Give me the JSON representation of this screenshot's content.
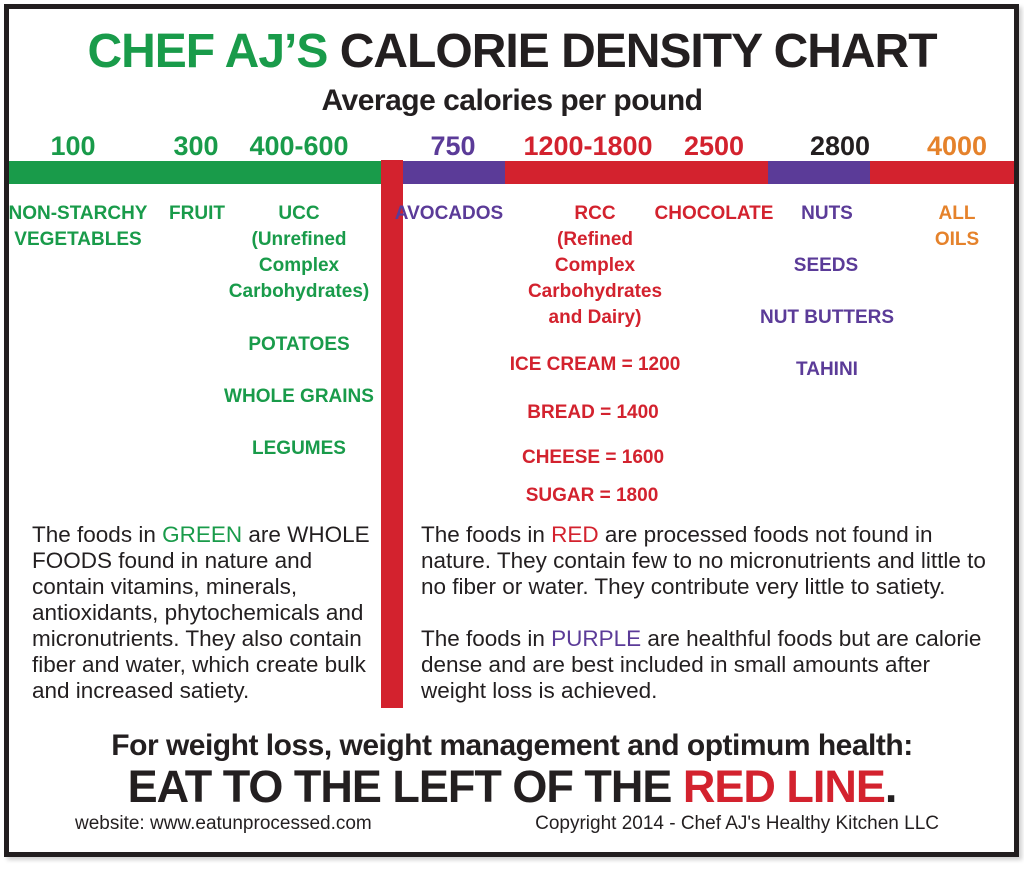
{
  "colors": {
    "green": "#199b4a",
    "red": "#d3222e",
    "purple": "#5b3b98",
    "orange": "#e5822b",
    "ink": "#231f20"
  },
  "header": {
    "brand": "CHEF AJ’S",
    "title_rest": " CALORIE DENSITY CHART",
    "subtitle": "Average calories per pound"
  },
  "scale_ticks": [
    {
      "label": "100",
      "color": "green"
    },
    {
      "label": "300",
      "color": "green"
    },
    {
      "label": "400-600",
      "color": "green"
    },
    {
      "label": "750",
      "color": "purple"
    },
    {
      "label": "1200-1800",
      "color": "red"
    },
    {
      "label": "2500",
      "color": "red"
    },
    {
      "label": "2800",
      "color": "black"
    },
    {
      "label": "4000",
      "color": "orange"
    }
  ],
  "foods": {
    "green": {
      "veg": "NON-STARCHY\nVEGETABLES",
      "fruit": "FRUIT",
      "ucc": "UCC\n(Unrefined\nComplex\nCarbohydrates)",
      "potatoes": "POTATOES",
      "whole_grains": "WHOLE GRAINS",
      "legumes": "LEGUMES"
    },
    "purple": {
      "avocados": "AVOCADOS",
      "nuts": "NUTS",
      "seeds": "SEEDS",
      "nut_butters": "NUT BUTTERS",
      "tahini": "TAHINI"
    },
    "red": {
      "rcc": "RCC\n(Refined\nComplex\nCarbohydrates\nand Dairy)",
      "ice_cream": "ICE CREAM = 1200",
      "bread": "BREAD = 1400",
      "cheese": "CHEESE = 1600",
      "sugar": "SUGAR = 1800",
      "chocolate": "CHOCOLATE"
    },
    "orange": {
      "all_oils": "ALL OILS"
    }
  },
  "paragraphs": {
    "green_pre": "The foods in ",
    "green_word": "GREEN",
    "green_post": " are WHOLE FOODS found in nature and contain vitamins, minerals, antioxidants, phytochemicals and micronutrients. They also contain fiber and water, which create bulk and increased satiety.",
    "red_pre": "The foods in ",
    "red_word": "RED",
    "red_post": " are processed foods not found in nature. They contain few to no micronutrients and little to no fiber or water. They contribute very little to satiety.",
    "purple_pre": "The foods in ",
    "purple_word": "PURPLE",
    "purple_post": " are healthful foods but are calorie dense and are best included in small amounts after weight loss is achieved."
  },
  "cta": {
    "line1": "For weight loss, weight management and optimum health:",
    "line2_black": "EAT TO THE LEFT OF THE ",
    "line2_red": "RED LINE",
    "line2_period": "."
  },
  "footer": {
    "website": "website: www.eatunprocessed.com",
    "copyright": "Copyright 2014 - Chef AJ's Healthy Kitchen LLC"
  },
  "chart_data": {
    "type": "table",
    "title": "CHEF AJ'S CALORIE DENSITY CHART",
    "subtitle": "Average calories per pound",
    "axis": {
      "unit": "average calories per pound",
      "tick_labels": [
        "100",
        "300",
        "400-600",
        "750",
        "1200-1800",
        "2500",
        "2800",
        "4000"
      ],
      "range": [
        100,
        4000
      ]
    },
    "zones": [
      {
        "color": "green",
        "range_calories": "100-600",
        "meaning": "whole foods found in nature"
      },
      {
        "color": "purple",
        "range_calories": "750",
        "meaning": "healthful but calorie dense"
      },
      {
        "color": "red",
        "range_calories": "1200-2500",
        "meaning": "processed foods not found in nature"
      },
      {
        "color": "purple",
        "range_calories": "2800",
        "meaning": "healthful but calorie dense"
      },
      {
        "color": "red",
        "range_calories": "4000",
        "meaning": "processed / oils"
      }
    ],
    "items": [
      {
        "food": "Non-starchy vegetables",
        "calories_per_pound": 100,
        "zone": "green"
      },
      {
        "food": "Fruit",
        "calories_per_pound": 300,
        "zone": "green"
      },
      {
        "food": "UCC (Unrefined Complex Carbohydrates): potatoes, whole grains, legumes",
        "calories_per_pound": "400-600",
        "zone": "green"
      },
      {
        "food": "Avocados",
        "calories_per_pound": 750,
        "zone": "purple"
      },
      {
        "food": "RCC (Refined Complex Carbohydrates and Dairy)",
        "calories_per_pound": "1200-1800",
        "zone": "red"
      },
      {
        "food": "Ice cream",
        "calories_per_pound": 1200,
        "zone": "red"
      },
      {
        "food": "Bread",
        "calories_per_pound": 1400,
        "zone": "red"
      },
      {
        "food": "Cheese",
        "calories_per_pound": 1600,
        "zone": "red"
      },
      {
        "food": "Sugar",
        "calories_per_pound": 1800,
        "zone": "red"
      },
      {
        "food": "Chocolate",
        "calories_per_pound": 2500,
        "zone": "red"
      },
      {
        "food": "Nuts, seeds, nut butters, tahini",
        "calories_per_pound": 2800,
        "zone": "purple"
      },
      {
        "food": "All oils",
        "calories_per_pound": 4000,
        "zone": "red"
      }
    ],
    "annotation": "EAT TO THE LEFT OF THE RED LINE. The red vertical line sits between 600 and 750 calories per pound."
  }
}
